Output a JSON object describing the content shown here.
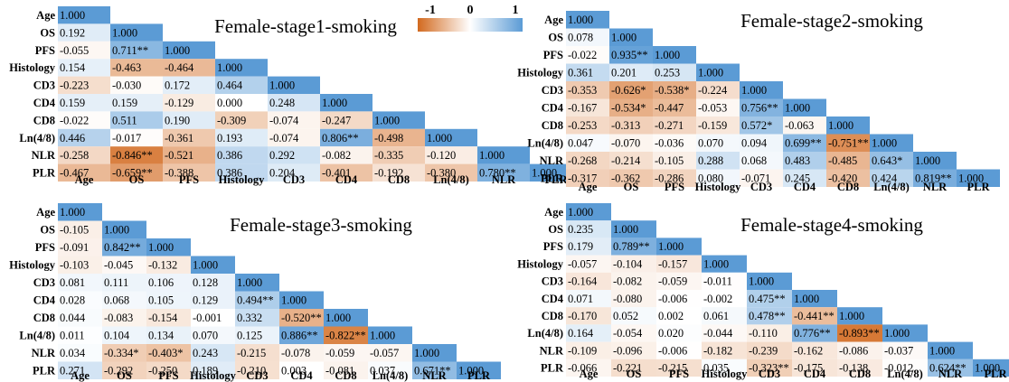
{
  "legend": {
    "min_label": "-1",
    "mid_label": "0",
    "max_label": "1",
    "neg_color": "#d2691e",
    "pos_color": "#5b9bd5",
    "zero_color": "#ffffff"
  },
  "chart_data": [
    {
      "type": "heatmap",
      "title": "Female-stage1-smoking",
      "variables": [
        "Age",
        "OS",
        "PFS",
        "Histology",
        "CD3",
        "CD4",
        "CD8",
        "Ln(4/8)",
        "NLR",
        "PLR"
      ],
      "matrix": [
        [
          "1.000"
        ],
        [
          "0.192",
          "1.000"
        ],
        [
          "-0.055",
          "0.711**",
          "1.000"
        ],
        [
          "0.154",
          "-0.463",
          "-0.464",
          "1.000"
        ],
        [
          "-0.223",
          "-0.030",
          "0.172",
          "0.464",
          "1.000"
        ],
        [
          "0.159",
          "0.159",
          "-0.129",
          "0.000",
          "0.248",
          "1.000"
        ],
        [
          "-0.022",
          "0.511",
          "0.190",
          "-0.309",
          "-0.074",
          "-0.247",
          "1.000"
        ],
        [
          "0.446",
          "-0.017",
          "-0.361",
          "0.193",
          "-0.074",
          "0.806**",
          "-0.498",
          "1.000"
        ],
        [
          "-0.258",
          "-0.846**",
          "-0.521",
          "0.386",
          "0.292",
          "-0.082",
          "-0.335",
          "-0.120",
          "1.000"
        ],
        [
          "-0.467",
          "-0.659**",
          "-0.388",
          "0.386",
          "0.204",
          "-0.401",
          "-0.192",
          "-0.380",
          "0.780**",
          "1.000"
        ]
      ]
    },
    {
      "type": "heatmap",
      "title": "Female-stage2-smoking",
      "variables": [
        "Age",
        "OS",
        "PFS",
        "Histology",
        "CD3",
        "CD4",
        "CD8",
        "Ln(4/8)",
        "NLR",
        "PLR"
      ],
      "matrix": [
        [
          "1.000"
        ],
        [
          "0.078",
          "1.000"
        ],
        [
          "-0.022",
          "0.935**",
          "1.000"
        ],
        [
          "0.361",
          "0.201",
          "0.253",
          "1.000"
        ],
        [
          "-0.353",
          "-0.626*",
          "-0.538*",
          "-0.224",
          "1.000"
        ],
        [
          "-0.167",
          "-0.534*",
          "-0.447",
          "-0.053",
          "0.756**",
          "1.000"
        ],
        [
          "-0.253",
          "-0.313",
          "-0.271",
          "-0.159",
          "0.572*",
          "-0.063",
          "1.000"
        ],
        [
          "0.047",
          "-0.070",
          "-0.036",
          "0.070",
          "0.094",
          "0.699**",
          "-0.751**",
          "1.000"
        ],
        [
          "-0.268",
          "-0.214",
          "-0.105",
          "0.288",
          "0.068",
          "0.483",
          "-0.485",
          "0.643*",
          "1.000"
        ],
        [
          "-0.317",
          "-0.362",
          "-0.286",
          "0.080",
          "-0.071",
          "0.245",
          "-0.420",
          "0.424",
          "0.819**",
          "1.000"
        ]
      ]
    },
    {
      "type": "heatmap",
      "title": "Female-stage3-smoking",
      "variables": [
        "Age",
        "OS",
        "PFS",
        "Histology",
        "CD3",
        "CD4",
        "CD8",
        "Ln(4/8)",
        "NLR",
        "PLR"
      ],
      "matrix": [
        [
          "1.000"
        ],
        [
          "-0.105",
          "1.000"
        ],
        [
          "-0.091",
          "0.842**",
          "1.000"
        ],
        [
          "-0.103",
          "-0.045",
          "-0.132",
          "1.000"
        ],
        [
          "0.081",
          "0.111",
          "0.106",
          "0.128",
          "1.000"
        ],
        [
          "0.028",
          "0.068",
          "0.105",
          "0.129",
          "0.494**",
          "1.000"
        ],
        [
          "0.044",
          "-0.083",
          "-0.154",
          "-0.001",
          "0.332",
          "-0.520**",
          "1.000"
        ],
        [
          "0.011",
          "0.104",
          "0.134",
          "0.070",
          "0.125",
          "0.886**",
          "-0.822**",
          "1.000"
        ],
        [
          "0.034",
          "-0.334*",
          "-0.403*",
          "0.243",
          "-0.215",
          "-0.078",
          "-0.059",
          "-0.057",
          "1.000"
        ],
        [
          "0.271",
          "-0.292",
          "-0.250",
          "0.189",
          "-0.210",
          "0.003",
          "-0.081",
          "0.037",
          "0.671**",
          "1.000"
        ]
      ]
    },
    {
      "type": "heatmap",
      "title": "Female-stage4-smoking",
      "variables": [
        "Age",
        "OS",
        "PFS",
        "Histology",
        "CD3",
        "CD4",
        "CD8",
        "Ln(4/8)",
        "NLR",
        "PLR"
      ],
      "matrix": [
        [
          "1.000"
        ],
        [
          "0.235",
          "1.000"
        ],
        [
          "0.179",
          "0.789**",
          "1.000"
        ],
        [
          "-0.057",
          "-0.104",
          "-0.157",
          "1.000"
        ],
        [
          "-0.164",
          "-0.082",
          "-0.059",
          "-0.011",
          "1.000"
        ],
        [
          "0.071",
          "-0.080",
          "-0.006",
          "-0.002",
          "0.475**",
          "1.000"
        ],
        [
          "-0.170",
          "0.052",
          "0.002",
          "0.061",
          "0.478**",
          "-0.441**",
          "1.000"
        ],
        [
          "0.164",
          "-0.054",
          "0.020",
          "-0.044",
          "-0.110",
          "0.776**",
          "-0.893**",
          "1.000"
        ],
        [
          "-0.109",
          "-0.096",
          "-0.006",
          "-0.182",
          "-0.239",
          "-0.162",
          "-0.086",
          "-0.037",
          "1.000"
        ],
        [
          "-0.066",
          "-0.221",
          "-0.215",
          "0.035",
          "-0.323**",
          "-0.175",
          "-0.138",
          "-0.012",
          "0.624**",
          "1.000"
        ]
      ]
    }
  ]
}
